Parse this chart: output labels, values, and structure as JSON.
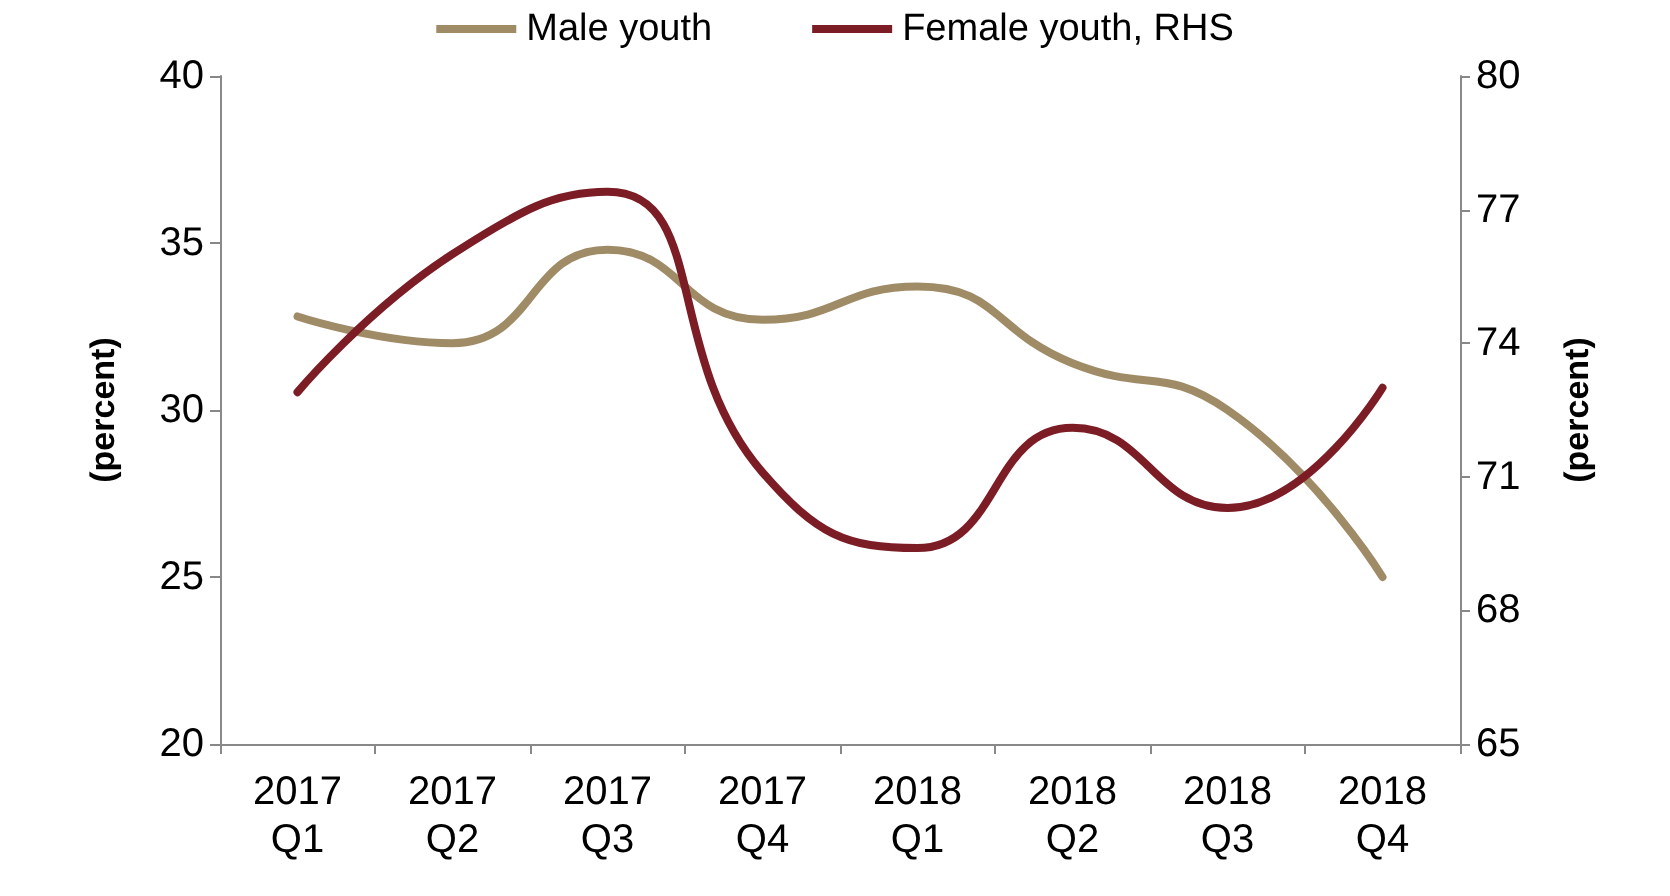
{
  "chart_data": {
    "type": "line",
    "categories": [
      "2017\nQ1",
      "2017\nQ2",
      "2017\nQ3",
      "2017\nQ4",
      "2018\nQ1",
      "2018\nQ2",
      "2018\nQ3",
      "2018\nQ4"
    ],
    "series": [
      {
        "name": "Male youth",
        "color": "#a08b67",
        "values": [
          32.8,
          32.0,
          34.8,
          32.7,
          33.7,
          31.4,
          30.0,
          25.0
        ]
      },
      {
        "name": "Female youth, RHS",
        "color": "#7c1d26",
        "axis": "y2",
        "values": [
          72.9,
          76.0,
          77.4,
          71.1,
          69.4,
          72.1,
          70.3,
          73.0
        ]
      }
    ],
    "ylabel": "(percent)",
    "y2label": "(percent)",
    "ylim": [
      20,
      40
    ],
    "yticks": [
      20,
      25,
      30,
      35,
      40
    ],
    "y2lim": [
      65,
      80
    ],
    "y2ticks": [
      65,
      68,
      71,
      74,
      77,
      80
    ],
    "legend": "top",
    "grid": false,
    "marker": "none",
    "line_style": "solid"
  }
}
